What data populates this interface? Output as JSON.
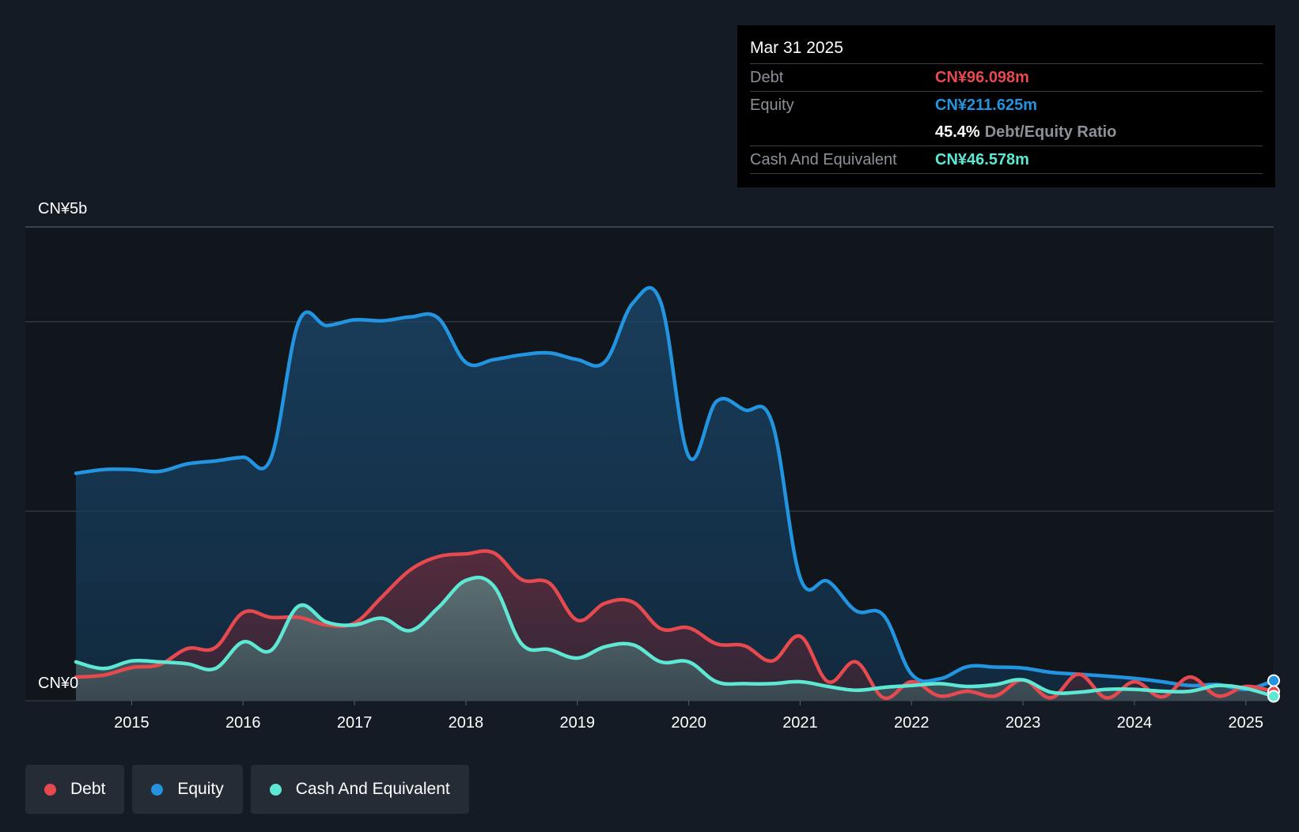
{
  "chart_data": {
    "type": "area",
    "y_axis": {
      "top_label": "CN¥5b",
      "bottom_label": "CN¥0",
      "ylim": [
        0,
        5000
      ]
    },
    "x_ticks": [
      "2015",
      "2016",
      "2017",
      "2018",
      "2019",
      "2020",
      "2021",
      "2022",
      "2023",
      "2024",
      "2025"
    ],
    "xlim": [
      2014.5,
      2025.25
    ],
    "series": [
      {
        "name": "Equity",
        "color": "#2394df",
        "x": [
          2014.5,
          2014.75,
          2015.0,
          2015.25,
          2015.5,
          2015.75,
          2016.0,
          2016.25,
          2016.5,
          2016.75,
          2017.0,
          2017.25,
          2017.5,
          2017.75,
          2018.0,
          2018.25,
          2018.5,
          2018.75,
          2019.0,
          2019.25,
          2019.5,
          2019.75,
          2020.0,
          2020.25,
          2020.5,
          2020.75,
          2021.0,
          2021.25,
          2021.5,
          2021.75,
          2022.0,
          2022.25,
          2022.5,
          2022.75,
          2023.0,
          2023.25,
          2023.5,
          2023.75,
          2024.0,
          2024.25,
          2024.5,
          2024.75,
          2025.0,
          2025.25
        ],
        "values": [
          2400,
          2440,
          2440,
          2420,
          2500,
          2530,
          2570,
          2560,
          4000,
          3960,
          4020,
          4010,
          4050,
          4040,
          3570,
          3600,
          3650,
          3670,
          3600,
          3580,
          4200,
          4200,
          2580,
          3160,
          3070,
          2930,
          1300,
          1260,
          950,
          900,
          280,
          230,
          360,
          355,
          345,
          300,
          280,
          260,
          235,
          200,
          160,
          170,
          120,
          211.625
        ]
      },
      {
        "name": "Debt",
        "color": "#e64a4f",
        "x": [
          2014.5,
          2014.75,
          2015.0,
          2015.25,
          2015.5,
          2015.75,
          2016.0,
          2016.25,
          2016.5,
          2016.75,
          2017.0,
          2017.25,
          2017.5,
          2017.75,
          2018.0,
          2018.25,
          2018.5,
          2018.75,
          2019.0,
          2019.25,
          2019.5,
          2019.75,
          2020.0,
          2020.25,
          2020.5,
          2020.75,
          2021.0,
          2021.25,
          2021.5,
          2021.75,
          2022.0,
          2022.25,
          2022.5,
          2022.75,
          2023.0,
          2023.25,
          2023.5,
          2023.75,
          2024.0,
          2024.25,
          2024.5,
          2024.75,
          2025.0,
          2025.25
        ],
        "values": [
          250,
          270,
          350,
          380,
          550,
          560,
          930,
          880,
          880,
          800,
          820,
          1100,
          1380,
          1520,
          1550,
          1560,
          1280,
          1240,
          850,
          1030,
          1040,
          760,
          770,
          600,
          580,
          420,
          680,
          200,
          410,
          30,
          200,
          50,
          100,
          50,
          220,
          30,
          280,
          30,
          200,
          40,
          250,
          50,
          150,
          96.098
        ]
      },
      {
        "name": "Cash And Equivalent",
        "color": "#5ee8d3",
        "x": [
          2014.5,
          2014.75,
          2015.0,
          2015.25,
          2015.5,
          2015.75,
          2016.0,
          2016.25,
          2016.5,
          2016.75,
          2017.0,
          2017.25,
          2017.5,
          2017.75,
          2018.0,
          2018.25,
          2018.5,
          2018.75,
          2019.0,
          2019.25,
          2019.5,
          2019.75,
          2020.0,
          2020.25,
          2020.5,
          2020.75,
          2021.0,
          2021.25,
          2021.5,
          2021.75,
          2022.0,
          2022.25,
          2022.5,
          2022.75,
          2023.0,
          2023.25,
          2023.5,
          2023.75,
          2024.0,
          2024.25,
          2024.5,
          2024.75,
          2025.0,
          2025.25
        ],
        "values": [
          410,
          340,
          420,
          410,
          390,
          340,
          620,
          530,
          1000,
          830,
          800,
          870,
          740,
          980,
          1270,
          1210,
          600,
          540,
          450,
          570,
          590,
          410,
          410,
          200,
          180,
          180,
          200,
          150,
          110,
          140,
          160,
          180,
          150,
          170,
          220,
          90,
          90,
          120,
          120,
          100,
          100,
          160,
          130,
          46.578
        ]
      }
    ]
  },
  "tooltip": {
    "date": "Mar 31 2025",
    "debt_label": "Debt",
    "debt_value": "CN¥96.098m",
    "equity_label": "Equity",
    "equity_value": "CN¥211.625m",
    "ratio_value": "45.4%",
    "ratio_label": "Debt/Equity Ratio",
    "cash_label": "Cash And Equivalent",
    "cash_value": "CN¥46.578m"
  },
  "legend": {
    "debt": "Debt",
    "equity": "Equity",
    "cash": "Cash And Equivalent"
  },
  "colors": {
    "debt": "#e64a4f",
    "equity": "#2394df",
    "cash": "#5ee8d3",
    "background": "#151b24"
  }
}
